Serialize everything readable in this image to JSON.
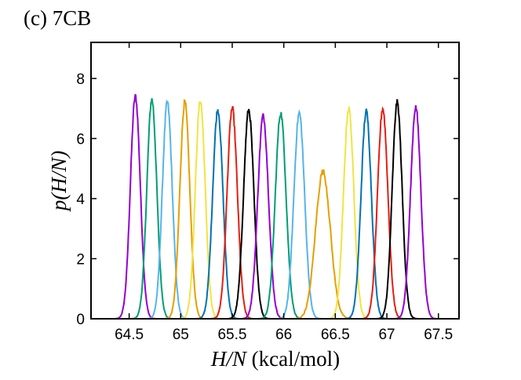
{
  "panel_title": "(c) 7CB",
  "chart_data": {
    "type": "line",
    "title": "(c) 7CB",
    "xlabel_italic": "H/N",
    "xlabel_rest": " (kcal/mol)",
    "ylabel_italic": "p(H/N)",
    "xlim": [
      64.13,
      67.7
    ],
    "ylim": [
      0,
      9.2
    ],
    "xticks": [
      64.5,
      65,
      65.5,
      66,
      66.5,
      67,
      67.5
    ],
    "xtick_labels": [
      "64.5",
      "65",
      "65.5",
      "66",
      "66.5",
      "67",
      "67.5"
    ],
    "yticks": [
      0,
      2,
      4,
      6,
      8
    ],
    "ytick_labels": [
      "0",
      "2",
      "4",
      "6",
      "8"
    ],
    "grid": false,
    "series": [
      {
        "center": 64.56,
        "peak": 7.4,
        "sigma": 0.048,
        "color": "#9400D3"
      },
      {
        "center": 64.72,
        "peak": 7.3,
        "sigma": 0.048,
        "color": "#009E73"
      },
      {
        "center": 64.87,
        "peak": 7.2,
        "sigma": 0.048,
        "color": "#56B4E9"
      },
      {
        "center": 65.04,
        "peak": 7.2,
        "sigma": 0.048,
        "color": "#E69F00"
      },
      {
        "center": 65.19,
        "peak": 7.25,
        "sigma": 0.048,
        "color": "#F0E442"
      },
      {
        "center": 65.36,
        "peak": 6.95,
        "sigma": 0.05,
        "color": "#0072B2"
      },
      {
        "center": 65.5,
        "peak": 7.0,
        "sigma": 0.05,
        "color": "#E51E10"
      },
      {
        "center": 65.66,
        "peak": 6.95,
        "sigma": 0.05,
        "color": "#000000"
      },
      {
        "center": 65.8,
        "peak": 6.75,
        "sigma": 0.052,
        "color": "#9400D3"
      },
      {
        "center": 65.97,
        "peak": 6.85,
        "sigma": 0.052,
        "color": "#009E73"
      },
      {
        "center": 66.15,
        "peak": 6.85,
        "sigma": 0.052,
        "color": "#56B4E9"
      },
      {
        "center": 66.38,
        "peak": 4.9,
        "sigma": 0.072,
        "color": "#E69F00"
      },
      {
        "center": 66.63,
        "peak": 7.0,
        "sigma": 0.05,
        "color": "#F0E442"
      },
      {
        "center": 66.8,
        "peak": 6.9,
        "sigma": 0.05,
        "color": "#0072B2"
      },
      {
        "center": 66.96,
        "peak": 7.0,
        "sigma": 0.05,
        "color": "#E51E10"
      },
      {
        "center": 67.1,
        "peak": 7.2,
        "sigma": 0.048,
        "color": "#000000"
      },
      {
        "center": 67.28,
        "peak": 7.05,
        "sigma": 0.05,
        "color": "#9400D3"
      }
    ]
  }
}
